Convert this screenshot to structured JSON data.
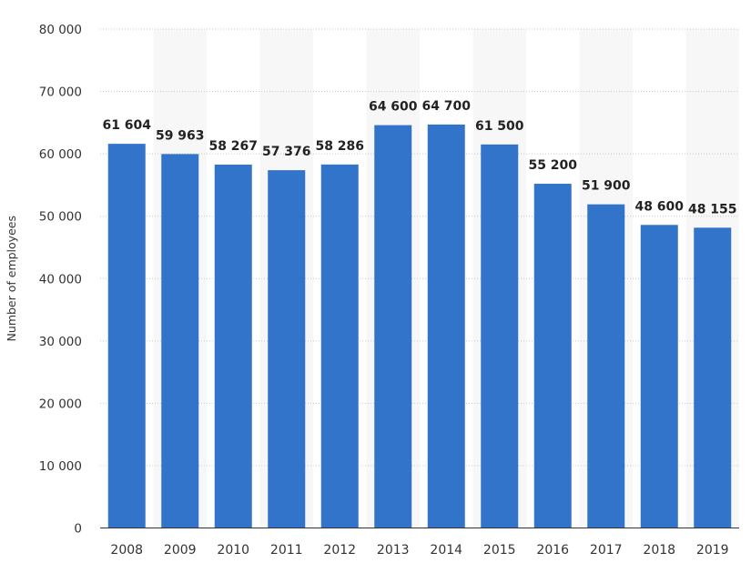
{
  "chart_data": {
    "type": "bar",
    "title": "",
    "xlabel": "",
    "ylabel": "Number of employees",
    "categories": [
      "2008",
      "2009",
      "2010",
      "2011",
      "2012",
      "2013",
      "2014",
      "2015",
      "2016",
      "2017",
      "2018",
      "2019"
    ],
    "values": [
      61604,
      59963,
      58267,
      57376,
      58286,
      64600,
      64700,
      61500,
      55200,
      51900,
      48600,
      48155
    ],
    "value_labels": [
      "61 604",
      "59 963",
      "58 267",
      "57 376",
      "58 286",
      "64 600",
      "64 700",
      "61 500",
      "55 200",
      "51 900",
      "48 600",
      "48 155"
    ],
    "ylim": [
      0,
      80000
    ],
    "yticks": [
      0,
      10000,
      20000,
      30000,
      40000,
      50000,
      60000,
      70000,
      80000
    ],
    "ytick_labels": [
      "0",
      "10 000",
      "20 000",
      "30 000",
      "40 000",
      "50 000",
      "60 000",
      "70 000",
      "80 000"
    ],
    "grid": true,
    "legend": "none",
    "colors": {
      "bar": "#3374cb",
      "band": "#f7f7f7",
      "grid": "#c8c8c8",
      "axis": "#333333",
      "tick_text": "#333333",
      "label_text": "#222222"
    }
  }
}
